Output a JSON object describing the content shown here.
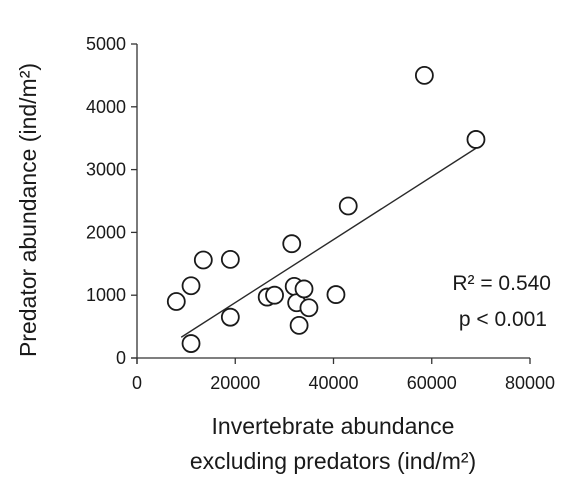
{
  "chart_data": {
    "type": "scatter",
    "xlabel_line1": "Invertebrate abundance",
    "xlabel_line2": "excluding predators (ind/m²)",
    "ylabel": "Predator abundance (ind/m²)",
    "xlim": [
      0,
      80000
    ],
    "ylim": [
      0,
      5000
    ],
    "x_ticks": [
      0,
      20000,
      40000,
      60000,
      80000
    ],
    "y_ticks": [
      0,
      1000,
      2000,
      3000,
      4000,
      5000
    ],
    "grid": false,
    "marker": "open-circle",
    "points": [
      {
        "x": 8000,
        "y": 900
      },
      {
        "x": 11000,
        "y": 1150
      },
      {
        "x": 11000,
        "y": 230
      },
      {
        "x": 13500,
        "y": 1560
      },
      {
        "x": 19000,
        "y": 1570
      },
      {
        "x": 19000,
        "y": 650
      },
      {
        "x": 26500,
        "y": 970
      },
      {
        "x": 28000,
        "y": 1000
      },
      {
        "x": 31500,
        "y": 1820
      },
      {
        "x": 32000,
        "y": 1140
      },
      {
        "x": 32500,
        "y": 880
      },
      {
        "x": 33000,
        "y": 520
      },
      {
        "x": 34000,
        "y": 1100
      },
      {
        "x": 35000,
        "y": 800
      },
      {
        "x": 40500,
        "y": 1010
      },
      {
        "x": 43000,
        "y": 2420
      },
      {
        "x": 58500,
        "y": 4500
      },
      {
        "x": 69000,
        "y": 3480
      }
    ],
    "trendline": {
      "x": [
        9000,
        69000
      ],
      "y": [
        330,
        3340
      ]
    },
    "annotations": {
      "r_squared": "R² = 0.540",
      "p_value": "p < 0.001"
    }
  }
}
